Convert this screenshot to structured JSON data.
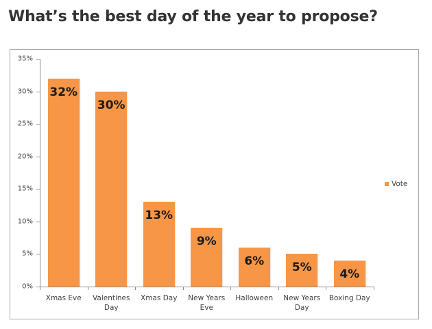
{
  "page": {
    "title": "What’s the best day of the year to propose?"
  },
  "colors": {
    "bar": "#f79646",
    "axis": "#8c8c8c",
    "frame": "#a6a6a6",
    "title": "#333333"
  },
  "y_ticks": [
    "0%",
    "5%",
    "10%",
    "15%",
    "20%",
    "25%",
    "30%",
    "35%"
  ],
  "bars": [
    {
      "category": "Xmas Eve",
      "label_lines": [
        "Xmas Eve"
      ],
      "value": 32,
      "display": "32%"
    },
    {
      "category": "Valentines Day",
      "label_lines": [
        "Valentines",
        "Day"
      ],
      "value": 30,
      "display": "30%"
    },
    {
      "category": "Xmas Day",
      "label_lines": [
        "Xmas Day"
      ],
      "value": 13,
      "display": "13%"
    },
    {
      "category": "New Years Eve",
      "label_lines": [
        "New Years",
        "Eve"
      ],
      "value": 9,
      "display": "9%"
    },
    {
      "category": "Halloween",
      "label_lines": [
        "Halloween"
      ],
      "value": 6,
      "display": "6%"
    },
    {
      "category": "New Years Day",
      "label_lines": [
        "New Years",
        "Day"
      ],
      "value": 5,
      "display": "5%"
    },
    {
      "category": "Boxing Day",
      "label_lines": [
        "Boxing Day"
      ],
      "value": 4,
      "display": "4%"
    }
  ],
  "legend": {
    "label": "Vote"
  },
  "chart_data": {
    "type": "bar",
    "title": "What’s the best day of the year to propose?",
    "categories": [
      "Xmas Eve",
      "Valentines Day",
      "Xmas Day",
      "New Years Eve",
      "Halloween",
      "New Years Day",
      "Boxing Day"
    ],
    "series": [
      {
        "name": "Vote",
        "values": [
          32,
          30,
          13,
          9,
          6,
          5,
          4
        ],
        "color": "#f79646"
      }
    ],
    "data_labels": [
      "32%",
      "30%",
      "13%",
      "9%",
      "6%",
      "5%",
      "4%"
    ],
    "xlabel": "",
    "ylabel": "",
    "ylim": [
      0,
      35
    ],
    "y_tick_labels": [
      "0%",
      "5%",
      "10%",
      "15%",
      "20%",
      "25%",
      "30%",
      "35%"
    ],
    "y_unit": "%",
    "grid": false,
    "legend_position": "right"
  }
}
